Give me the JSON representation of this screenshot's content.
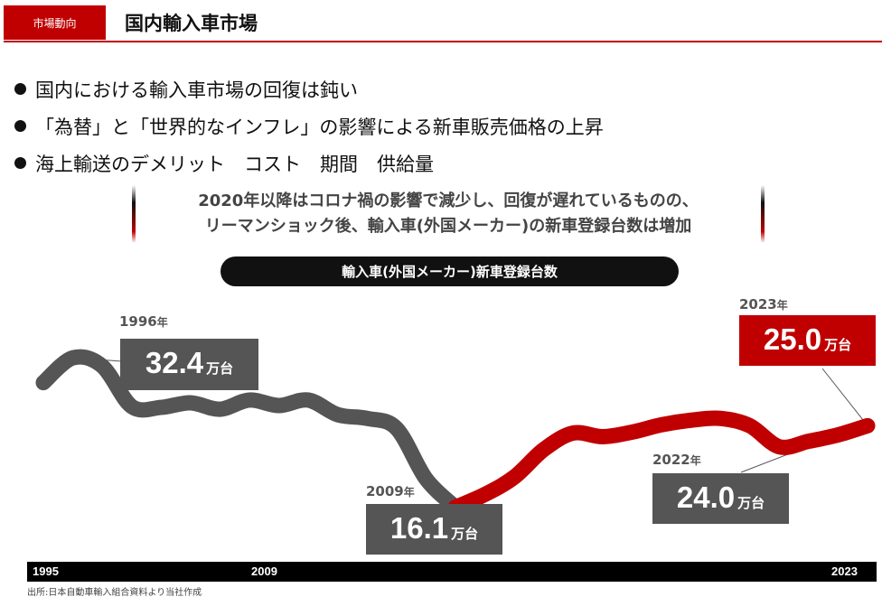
{
  "header": {
    "tag": "市場動向",
    "title": "国内輸入車市場"
  },
  "bullets": [
    "国内における輸入車市場の回復は鈍い",
    "「為替」と「世界的なインフレ」の影響による新車販売価格の上昇",
    "海上輸送のデメリット　コスト　期間　供給量"
  ],
  "callout": [
    "2020年以降はコロナ禍の影響で減少し、回復が遅れているものの、",
    "リーマンショック後、輸入車(外国メーカー)の新車登録台数は増加"
  ],
  "colors": {
    "accent": "#c00000",
    "dark": "#555555",
    "black": "#000000"
  },
  "chart_data": {
    "type": "line",
    "title": "輸入車(外国メーカー)新車登録台数",
    "xlabel": "",
    "ylabel": "",
    "unit": "万台",
    "xlim": [
      1995,
      2023
    ],
    "ylim": [
      14,
      34
    ],
    "x_ticks": [
      "1995",
      "2009",
      "2023"
    ],
    "series": [
      {
        "color": "#555555",
        "x": [
          1995,
          1996,
          1997,
          1998,
          1999,
          2000,
          2001,
          2002,
          2003,
          2004,
          2005,
          2006,
          2007,
          2008,
          2009
        ],
        "y": [
          29.7,
          32.4,
          31.5,
          27.1,
          27.0,
          27.5,
          26.8,
          27.8,
          27.2,
          27.8,
          26.2,
          25.8,
          24.7,
          19.2,
          16.1
        ]
      },
      {
        "color": "#c00000",
        "x": [
          2009,
          2010,
          2011,
          2012,
          2013,
          2014,
          2015,
          2016,
          2017,
          2018,
          2019,
          2020,
          2021,
          2022,
          2023
        ],
        "y": [
          16.1,
          17.5,
          19.4,
          22.4,
          24.2,
          23.8,
          24.3,
          25.1,
          25.6,
          25.8,
          25.0,
          22.7,
          23.3,
          24.0,
          25.0
        ]
      }
    ],
    "annotations": [
      {
        "year": "1996",
        "year_suffix": "年",
        "value": "32.4",
        "unit": "万台"
      },
      {
        "year": "2009",
        "year_suffix": "年",
        "value": "16.1",
        "unit": "万台"
      },
      {
        "year": "2022",
        "year_suffix": "年",
        "value": "24.0",
        "unit": "万台"
      },
      {
        "year": "2023",
        "year_suffix": "年",
        "value": "25.0",
        "unit": "万台"
      }
    ]
  },
  "source": "出所:日本自動車輸入組合資料より当社作成"
}
